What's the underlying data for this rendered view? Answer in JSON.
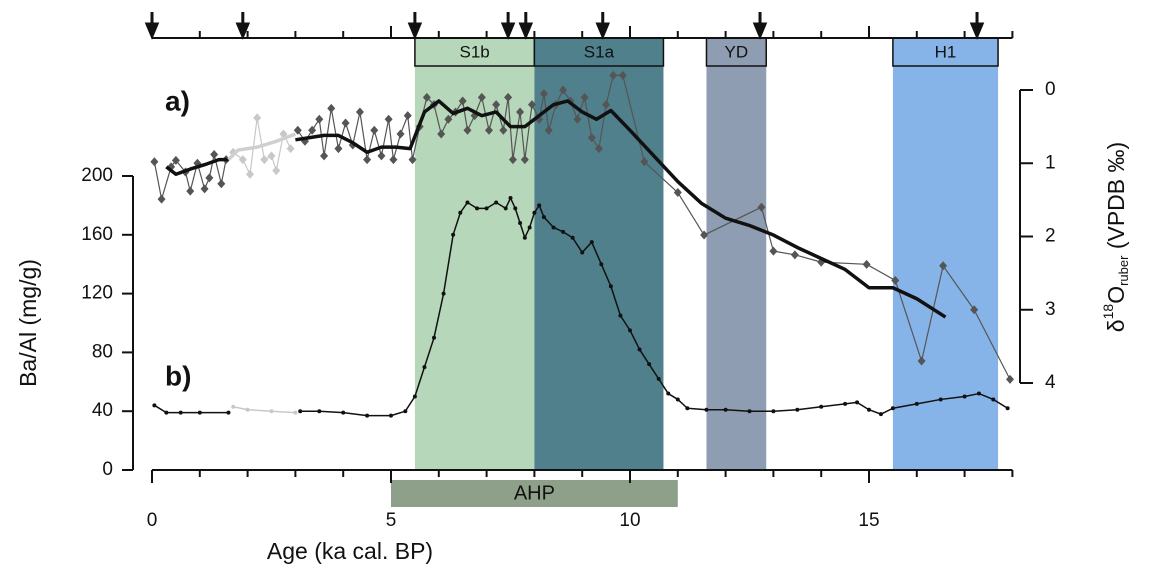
{
  "chart_data": {
    "type": "line",
    "xlabel": "Age (ka cal. BP)",
    "ylabel": "Ba/Al (mg/g)",
    "y2label": {
      "prefix": "δ",
      "sup": "18",
      "main": "O",
      "sub": "ruber",
      "suffix": " (VPDB ‰)"
    },
    "xlim": [
      0,
      18
    ],
    "xticks": [
      0,
      5,
      10,
      15
    ],
    "xminorticks": [
      0,
      1,
      2,
      3,
      4,
      5,
      6,
      7,
      8,
      9,
      10,
      11,
      12,
      13,
      14,
      15,
      16,
      17,
      18
    ],
    "ylim": [
      0,
      200
    ],
    "yticks": [
      0,
      40,
      80,
      120,
      160,
      200
    ],
    "y2lim": [
      4,
      0
    ],
    "y2ticks": [
      0,
      1,
      2,
      3,
      4
    ],
    "dates": [
      0,
      1.9,
      5.5,
      7.45,
      7.82,
      9.43,
      12.72,
      17.26
    ],
    "bands": [
      {
        "label": "S1b",
        "start": 5.5,
        "end": 8.0,
        "color": "#b6d7b9"
      },
      {
        "label": "S1a",
        "start": 8.0,
        "end": 10.7,
        "color": "#4f808c"
      },
      {
        "label": "YD",
        "start": 11.6,
        "end": 12.85,
        "color": "#8e9db2"
      },
      {
        "label": "H1",
        "start": 15.5,
        "end": 17.7,
        "color": "#86b4e8"
      }
    ],
    "period": {
      "label": "AHP",
      "start": 5.0,
      "end": 11.0,
      "color": "#8fa08a"
    },
    "panel_labels": [
      "a)",
      "b)"
    ],
    "series": [
      {
        "axis": "y2",
        "color": "#555555",
        "width": 1.2,
        "marker": "diamond",
        "x": [
          0.05,
          0.2,
          0.4,
          0.5,
          0.7,
          0.8,
          0.95,
          1.1,
          1.2,
          1.3,
          1.45,
          1.55,
          null,
          3.05,
          3.2,
          3.35,
          3.5,
          3.6,
          3.75,
          3.9,
          4.05,
          4.2,
          4.35,
          4.5,
          4.65,
          4.8,
          4.95,
          5.05,
          5.2,
          5.35,
          5.45,
          5.6,
          5.75,
          5.9,
          6.05,
          6.2,
          6.35,
          6.5,
          6.6,
          6.75,
          6.9,
          7.05,
          7.2,
          7.35,
          7.45,
          7.55,
          7.7,
          7.8,
          7.95,
          8.1,
          8.2,
          8.3,
          8.45,
          8.6,
          8.75,
          8.9,
          9.05,
          9.2,
          9.35,
          9.5,
          9.65,
          9.85,
          10.3,
          11.0,
          11.55,
          12.75,
          13.0,
          13.45,
          14.0,
          14.95,
          15.55,
          16.1,
          16.55,
          17.2,
          17.95
        ],
        "values": [
          0.98,
          1.49,
          1.05,
          0.96,
          1.12,
          1.38,
          1.0,
          1.35,
          1.2,
          0.88,
          1.28,
          0.95,
          null,
          0.55,
          0.7,
          0.55,
          0.4,
          0.9,
          0.25,
          0.8,
          0.45,
          0.75,
          0.3,
          0.95,
          0.55,
          0.9,
          0.4,
          0.95,
          0.6,
          0.35,
          0.95,
          0.5,
          0.1,
          0.2,
          0.6,
          0.4,
          0.3,
          0.15,
          0.55,
          0.35,
          0.1,
          0.55,
          0.2,
          0.55,
          0.1,
          0.95,
          0.3,
          0.95,
          0.2,
          0.4,
          0.05,
          0.55,
          0.2,
          0.0,
          0.15,
          0.4,
          0.1,
          0.65,
          0.8,
          0.2,
          -0.2,
          -0.2,
          0.98,
          1.4,
          1.98,
          1.6,
          2.2,
          2.25,
          2.35,
          2.38,
          2.6,
          3.7,
          2.4,
          3.0,
          3.95
        ]
      },
      {
        "axis": "y2",
        "color": "#c8c8c8",
        "width": 1.2,
        "marker": "diamond",
        "x": [
          1.7,
          1.9,
          2.05,
          2.2,
          2.35,
          2.5,
          2.6,
          2.75,
          2.9
        ],
        "values": [
          0.85,
          0.95,
          1.15,
          0.38,
          0.95,
          0.9,
          1.1,
          0.6,
          0.8
        ]
      },
      {
        "axis": "y2",
        "color": "#111111",
        "width": 3.5,
        "marker": "none",
        "x": [
          0.3,
          0.5,
          0.8,
          1.1,
          1.4,
          1.6,
          null,
          3.0,
          3.3,
          3.6,
          3.9,
          4.2,
          4.5,
          4.8,
          5.1,
          5.4,
          5.7,
          6.0,
          6.3,
          6.6,
          6.9,
          7.2,
          7.5,
          7.8,
          8.1,
          8.4,
          8.7,
          9.0,
          9.3,
          9.6,
          10.0,
          10.5,
          11.0,
          11.5,
          12.0,
          12.5,
          13.0,
          13.5,
          14.0,
          14.5,
          15.0,
          15.5,
          16.0,
          16.6
        ],
        "values": [
          1.05,
          1.15,
          1.08,
          1.02,
          0.95,
          0.95,
          null,
          0.68,
          0.65,
          0.62,
          0.62,
          0.72,
          0.85,
          0.78,
          0.78,
          0.8,
          0.3,
          0.15,
          0.32,
          0.25,
          0.35,
          0.3,
          0.5,
          0.5,
          0.35,
          0.2,
          0.15,
          0.3,
          0.4,
          0.28,
          0.55,
          0.9,
          1.25,
          1.55,
          1.75,
          1.85,
          1.98,
          2.15,
          2.3,
          2.45,
          2.7,
          2.7,
          2.85,
          3.1
        ]
      },
      {
        "axis": "y2",
        "color": "#cfcfcf",
        "width": 3.5,
        "marker": "none",
        "x": [
          1.6,
          1.8,
          2.2,
          2.6,
          3.0
        ],
        "values": [
          0.95,
          0.82,
          0.78,
          0.7,
          0.6
        ]
      },
      {
        "axis": "y",
        "color": "#111111",
        "width": 1.5,
        "marker": "dot",
        "x": [
          0.05,
          0.3,
          0.6,
          1.0,
          1.6,
          null,
          3.1,
          3.5,
          4.0,
          4.5,
          5.0,
          5.3,
          5.5,
          5.7,
          5.9,
          6.1,
          6.3,
          6.45,
          6.6,
          6.8,
          7.0,
          7.2,
          7.4,
          7.5,
          7.6,
          7.7,
          7.8,
          7.9,
          8.0,
          8.1,
          8.2,
          8.4,
          8.6,
          8.8,
          9.0,
          9.2,
          9.4,
          9.6,
          9.8,
          10.0,
          10.2,
          10.4,
          10.6,
          10.8,
          11.0,
          11.2,
          11.6,
          12.0,
          12.5,
          13.0,
          13.5,
          14.0,
          14.5,
          14.75,
          15.0,
          15.25,
          15.5,
          16.0,
          16.5,
          17.0,
          17.3,
          17.6,
          17.9
        ],
        "values": [
          44,
          39,
          39,
          39,
          39,
          null,
          40,
          40,
          39,
          37,
          37,
          40,
          50,
          70,
          90,
          120,
          160,
          175,
          182,
          178,
          178,
          182,
          178,
          185,
          178,
          168,
          158,
          165,
          175,
          180,
          172,
          165,
          162,
          158,
          148,
          155,
          140,
          125,
          105,
          95,
          82,
          72,
          62,
          52,
          48,
          42,
          41,
          41,
          40,
          40,
          41,
          43,
          45,
          46,
          41,
          38,
          42,
          45,
          48,
          50,
          52,
          48,
          42
        ]
      },
      {
        "axis": "y",
        "color": "#c8c8c8",
        "width": 1.5,
        "marker": "dot",
        "x": [
          1.7,
          2.0,
          2.5,
          3.0
        ],
        "values": [
          43,
          41,
          40,
          39
        ]
      }
    ]
  }
}
